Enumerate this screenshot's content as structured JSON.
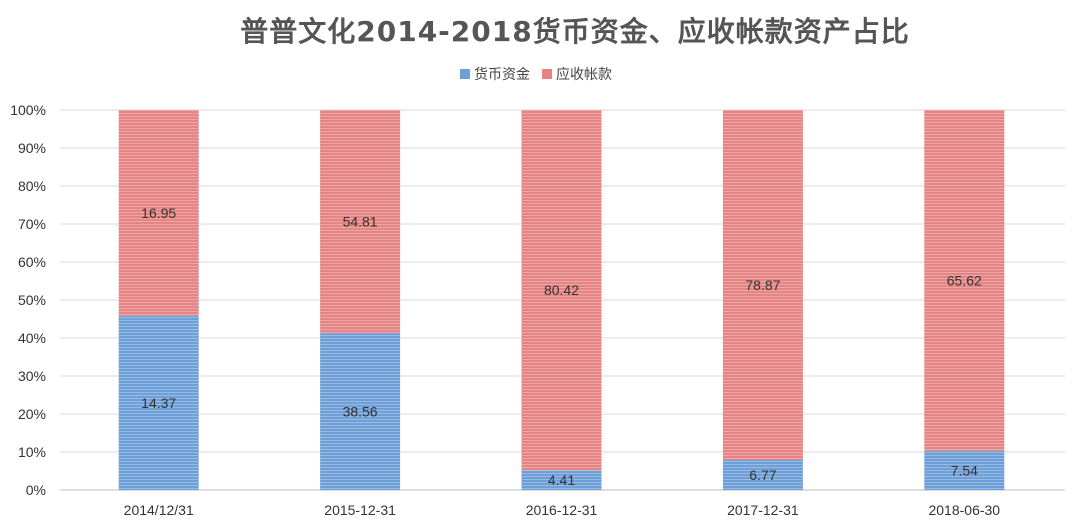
{
  "chart_data": {
    "type": "bar",
    "stacked": "percent",
    "title": "普普文化2014-2018货币资金、应收帐款资产占比",
    "xlabel": "",
    "ylabel": "",
    "categories": [
      "2014/12/31",
      "2015-12-31",
      "2016-12-31",
      "2017-12-31",
      "2018-06-30"
    ],
    "series": [
      {
        "name": "货币资金",
        "color": "#6f9fd8",
        "values": [
          14.37,
          38.56,
          4.41,
          6.77,
          7.54
        ]
      },
      {
        "name": "应收帐款",
        "color": "#e68383",
        "values": [
          16.95,
          54.81,
          80.42,
          78.87,
          65.62
        ]
      }
    ],
    "y_ticks": [
      "0%",
      "10%",
      "20%",
      "30%",
      "40%",
      "50%",
      "60%",
      "70%",
      "80%",
      "90%",
      "100%"
    ],
    "ylim": [
      0,
      100
    ],
    "grid": true,
    "legend_position": "top"
  }
}
